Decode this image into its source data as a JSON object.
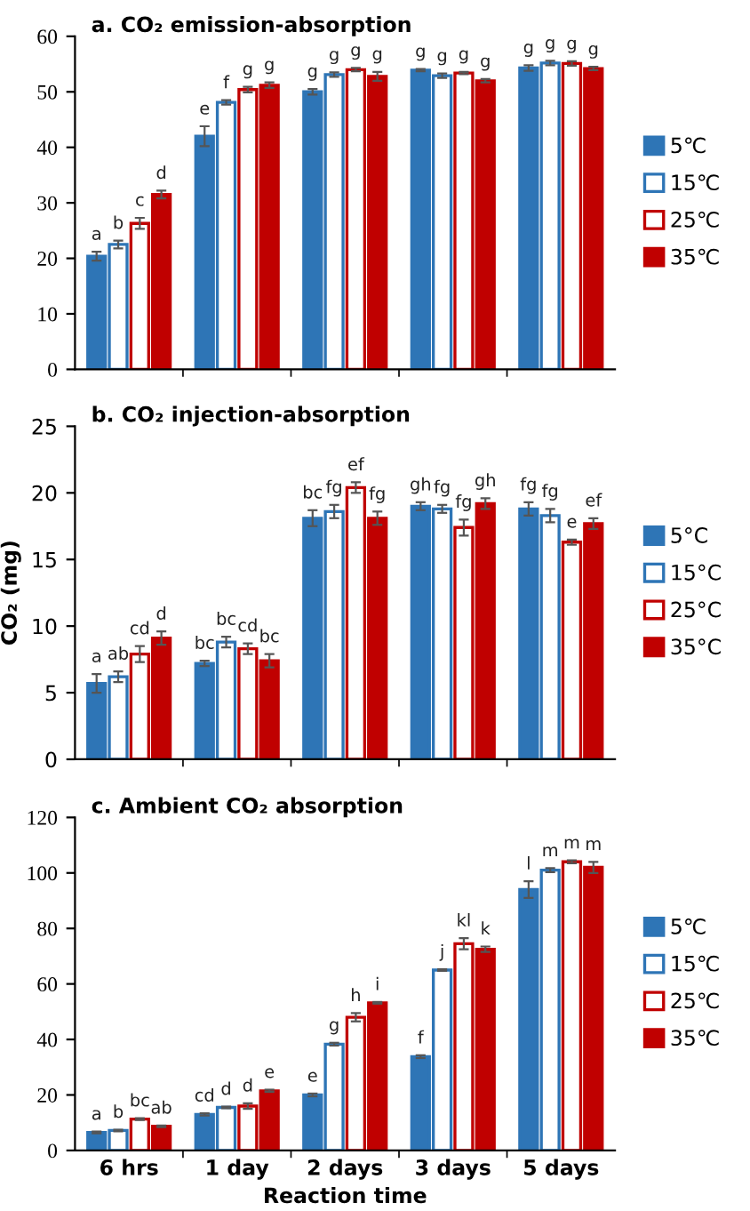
{
  "chart_data": [
    {
      "type": "bar",
      "title": "a. CO₂ emission-absorption",
      "categories": [
        null,
        null,
        null,
        null,
        null
      ],
      "ylim": [
        0,
        60
      ],
      "yticks": [
        0,
        10,
        20,
        30,
        40,
        50,
        60
      ],
      "legend": "right",
      "grid": false,
      "series": [
        {
          "name": "5℃",
          "color": "#2e75b6",
          "values": [
            20.4,
            42.0,
            50.0,
            53.9,
            54.3
          ],
          "errors": [
            0.8,
            1.8,
            0.5,
            0.2,
            0.5
          ],
          "value_labels": [
            "a",
            "e",
            "g",
            "g",
            "g"
          ]
        },
        {
          "name": "15℃",
          "color": "#2e75b6",
          "values": [
            22.5,
            48.1,
            53.1,
            52.9,
            55.2
          ],
          "errors": [
            0.7,
            0.4,
            0.4,
            0.4,
            0.4
          ],
          "value_labels": [
            "b",
            "f",
            "g",
            "g",
            "g"
          ]
        },
        {
          "name": "25℃",
          "color": "#c00000",
          "values": [
            26.3,
            50.4,
            54.0,
            53.4,
            55.1
          ],
          "errors": [
            1.0,
            0.5,
            0.3,
            0.2,
            0.4
          ],
          "value_labels": [
            "c",
            "g",
            "g",
            "g",
            "g"
          ]
        },
        {
          "name": "35℃",
          "color": "#c00000",
          "values": [
            31.5,
            51.2,
            52.8,
            52.0,
            54.2
          ],
          "errors": [
            0.7,
            0.5,
            0.8,
            0.3,
            0.3
          ],
          "value_labels": [
            "d",
            "g",
            "g",
            "g",
            "g"
          ]
        }
      ]
    },
    {
      "type": "bar",
      "title": "b. CO₂ injection-absorption",
      "ylabel": "CO₂ (mg)",
      "categories": [
        null,
        null,
        null,
        null,
        null
      ],
      "ylim": [
        0,
        25
      ],
      "yticks": [
        0,
        5,
        10,
        15,
        20,
        25
      ],
      "legend": "right",
      "grid": false,
      "series": [
        {
          "name": "5°C",
          "color": "#2e75b6",
          "values": [
            5.7,
            7.2,
            18.1,
            19.0,
            18.8
          ],
          "errors": [
            0.7,
            0.2,
            0.6,
            0.3,
            0.5
          ],
          "value_labels": [
            "a",
            "bc",
            "bc",
            "gh",
            "fg"
          ]
        },
        {
          "name": "15°C",
          "color": "#2e75b6",
          "values": [
            6.2,
            8.8,
            18.6,
            18.8,
            18.3
          ],
          "errors": [
            0.4,
            0.4,
            0.5,
            0.3,
            0.5
          ],
          "value_labels": [
            "ab",
            "bc",
            "fg",
            "fg",
            "fg"
          ]
        },
        {
          "name": "25°C",
          "color": "#c00000",
          "values": [
            7.9,
            8.3,
            20.4,
            17.4,
            16.3
          ],
          "errors": [
            0.6,
            0.4,
            0.4,
            0.6,
            0.2
          ],
          "value_labels": [
            "cd",
            "cd",
            "ef",
            "fg",
            "e"
          ]
        },
        {
          "name": "35°C",
          "color": "#c00000",
          "values": [
            9.1,
            7.4,
            18.1,
            19.2,
            17.7
          ],
          "errors": [
            0.5,
            0.5,
            0.5,
            0.4,
            0.4
          ],
          "value_labels": [
            "d",
            "bc",
            "fg",
            "gh",
            "ef"
          ]
        }
      ]
    },
    {
      "type": "bar",
      "title": "c. Ambient CO₂ absorption",
      "xlabel": "Reaction time",
      "categories": [
        "6 hrs",
        "1 day",
        "2 days",
        "3 days",
        "5 days"
      ],
      "ylim": [
        0,
        120
      ],
      "yticks": [
        0,
        20,
        40,
        60,
        80,
        100,
        120
      ],
      "legend": "right",
      "grid": false,
      "series": [
        {
          "name": "5℃",
          "color": "#2e75b6",
          "values": [
            6.5,
            13.0,
            20.0,
            33.8,
            94.0
          ],
          "errors": [
            0.3,
            0.4,
            0.5,
            0.5,
            3.0
          ],
          "value_labels": [
            "a",
            "cd",
            "e",
            "f",
            "l"
          ]
        },
        {
          "name": "15℃",
          "color": "#2e75b6",
          "values": [
            7.2,
            15.5,
            38.3,
            65.0,
            101.0
          ],
          "errors": [
            0.3,
            0.3,
            0.5,
            0.3,
            0.7
          ],
          "value_labels": [
            "b",
            "d",
            "g",
            "j",
            "m"
          ]
        },
        {
          "name": "25℃",
          "color": "#c00000",
          "values": [
            11.3,
            16.0,
            48.0,
            74.5,
            104.0
          ],
          "errors": [
            0.3,
            1.0,
            1.5,
            2.0,
            0.5
          ],
          "value_labels": [
            "bc",
            "d",
            "h",
            "kl",
            "m"
          ]
        },
        {
          "name": "35℃",
          "color": "#c00000",
          "values": [
            8.7,
            21.5,
            53.2,
            72.5,
            102.0
          ],
          "errors": [
            0.3,
            0.4,
            0.3,
            1.0,
            2.0
          ],
          "value_labels": [
            "ab",
            "e",
            "i",
            "k",
            "m"
          ]
        }
      ]
    }
  ]
}
